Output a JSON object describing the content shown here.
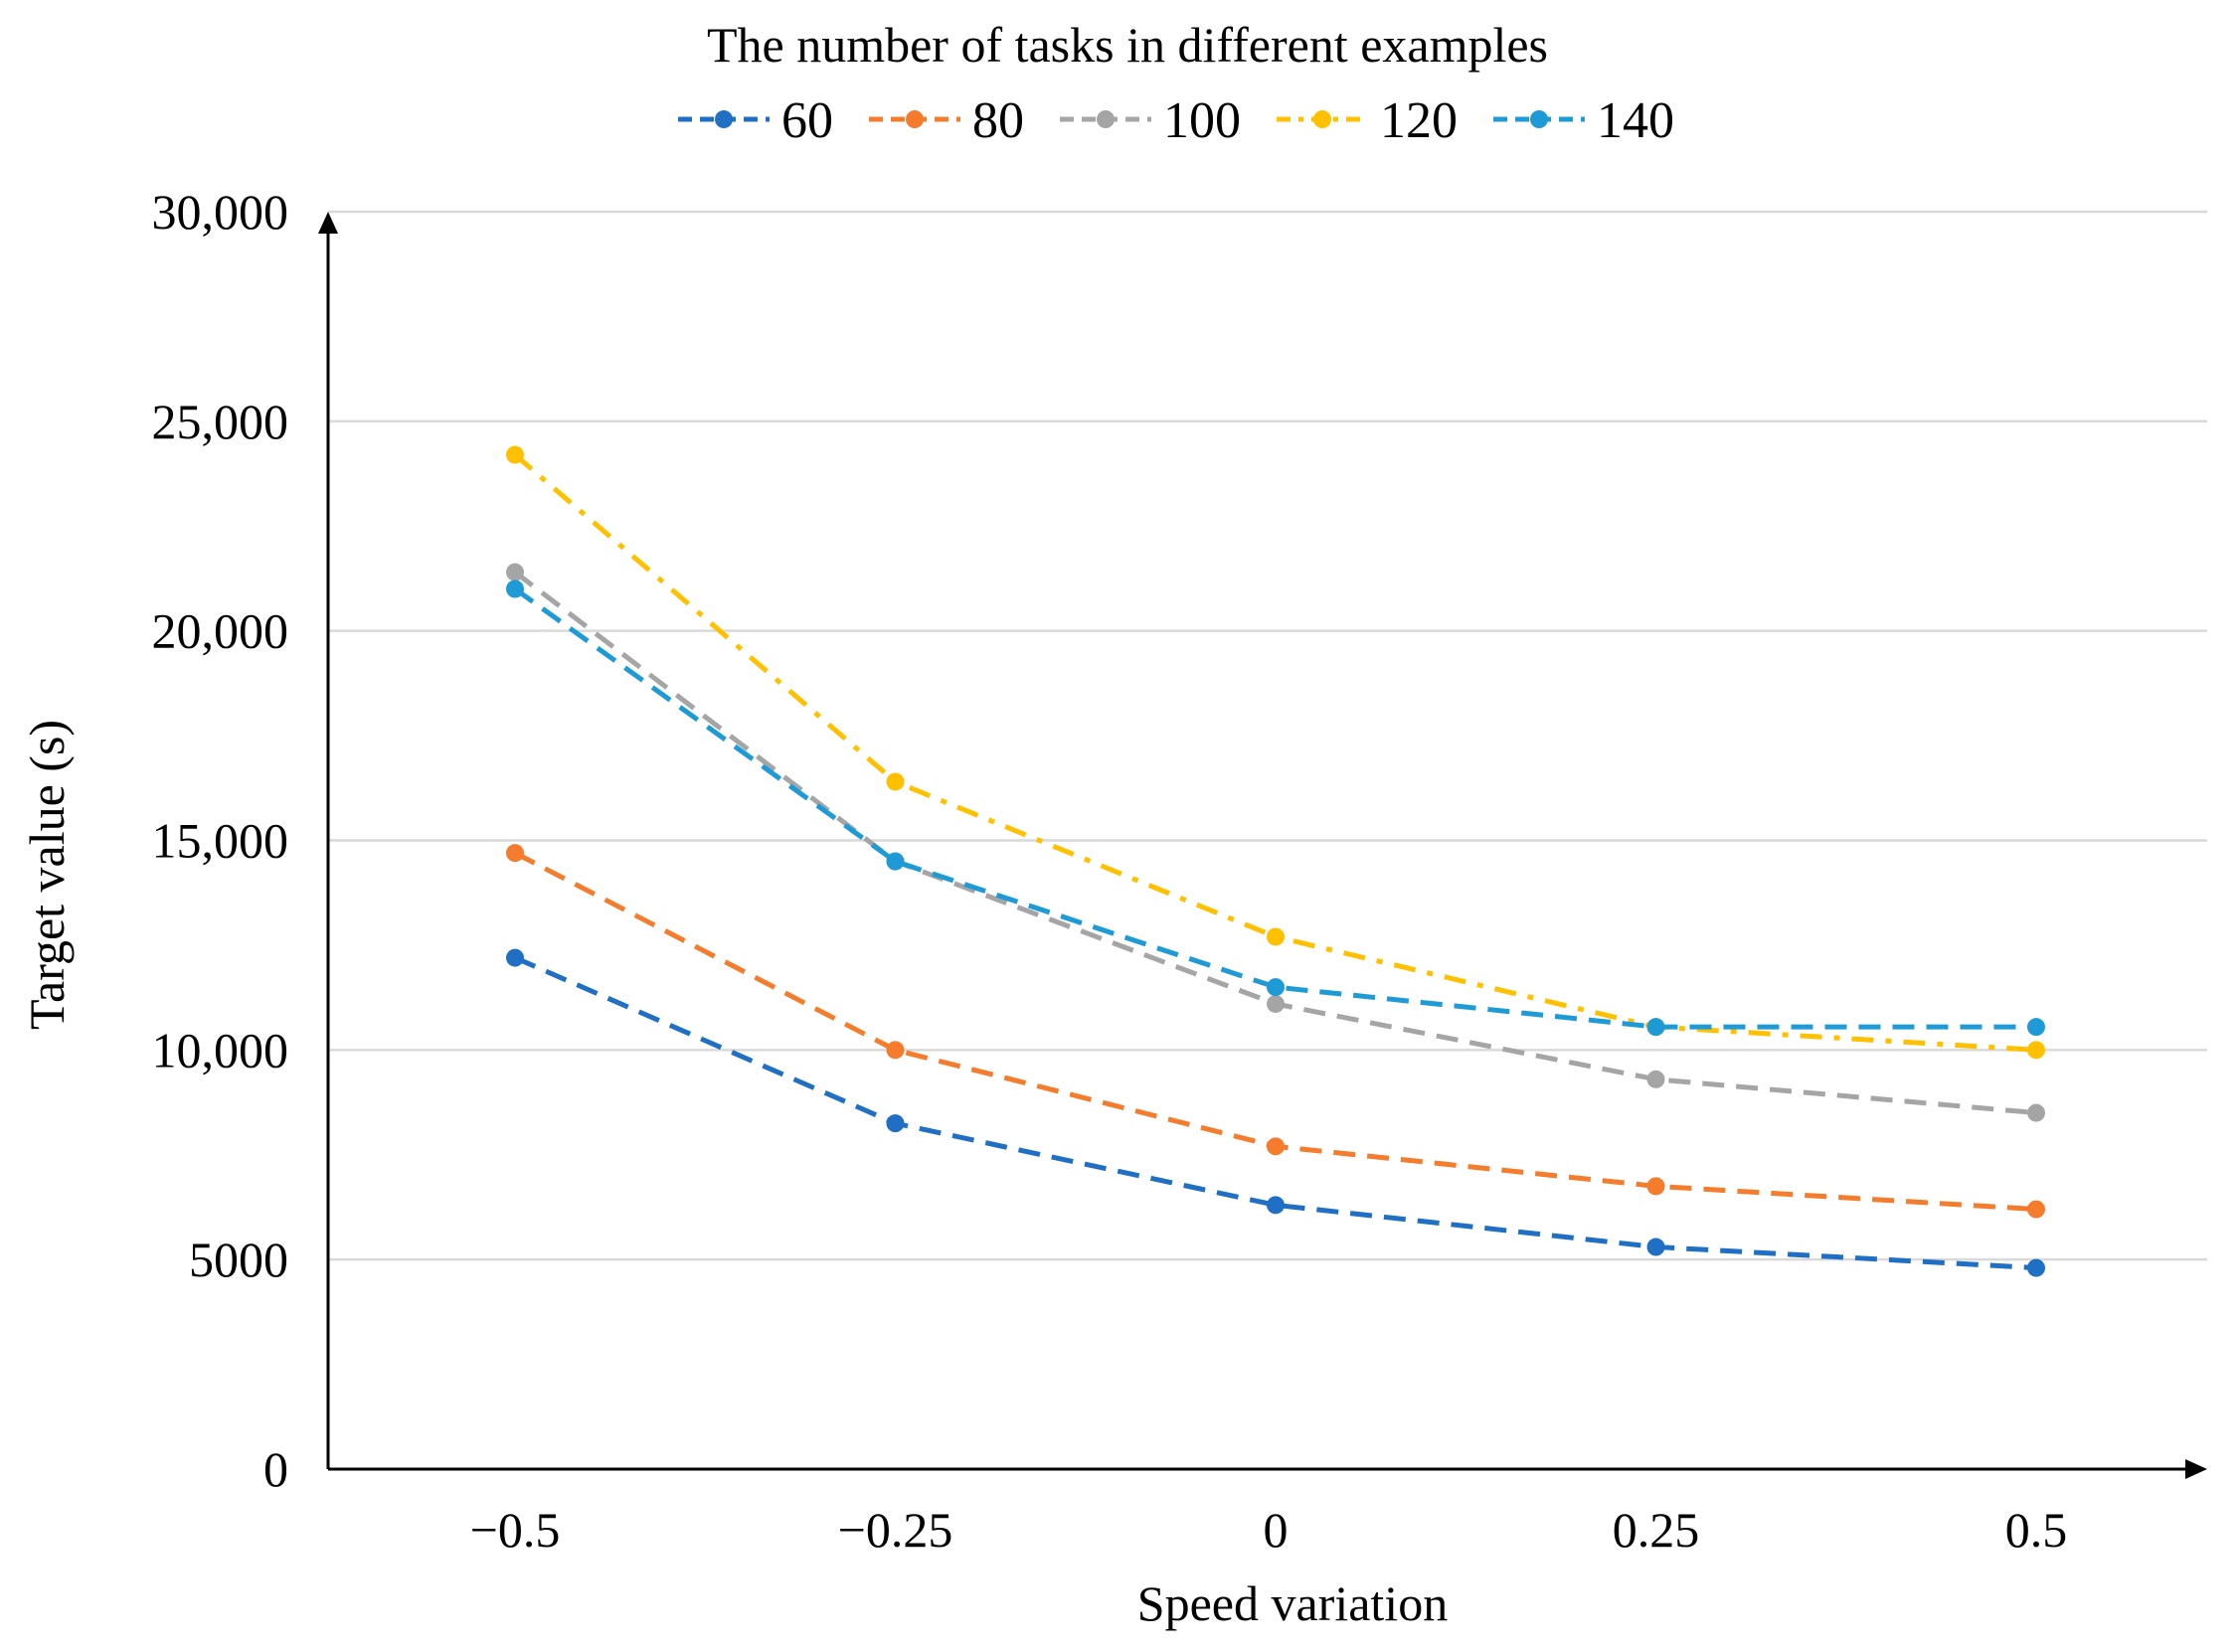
{
  "chart_data": {
    "type": "line",
    "title": "The number of tasks in different examples",
    "xlabel": "Speed variation",
    "ylabel": "Target value (s)",
    "x": [
      -0.5,
      -0.25,
      0,
      0.25,
      0.5
    ],
    "x_tick_labels": [
      "−0.5",
      "−0.25",
      "0",
      "0.25",
      "0.5"
    ],
    "ylim": [
      0,
      30000
    ],
    "y_ticks": [
      0,
      5000,
      10000,
      15000,
      20000,
      25000,
      30000
    ],
    "y_tick_labels": [
      "0",
      "5000",
      "10,000",
      "15,000",
      "20,000",
      "25,000",
      "30,000"
    ],
    "grid": true,
    "legend_position": "top",
    "series": [
      {
        "name": "60",
        "color": "#1F6FC5",
        "dash": "dashed",
        "values": [
          12200,
          8250,
          6300,
          5300,
          4800
        ]
      },
      {
        "name": "80",
        "color": "#F47C2C",
        "dash": "dashed",
        "values": [
          14700,
          10000,
          7700,
          6750,
          6200
        ]
      },
      {
        "name": "100",
        "color": "#A5A5A5",
        "dash": "dashed",
        "values": [
          21400,
          14500,
          11100,
          9300,
          8500
        ]
      },
      {
        "name": "120",
        "color": "#FFC000",
        "dash": "dash-dot",
        "values": [
          24200,
          16400,
          12700,
          10550,
          10000
        ]
      },
      {
        "name": "140",
        "color": "#1E9BD7",
        "dash": "dashed",
        "values": [
          21000,
          14500,
          11500,
          10550,
          10550
        ]
      }
    ]
  }
}
